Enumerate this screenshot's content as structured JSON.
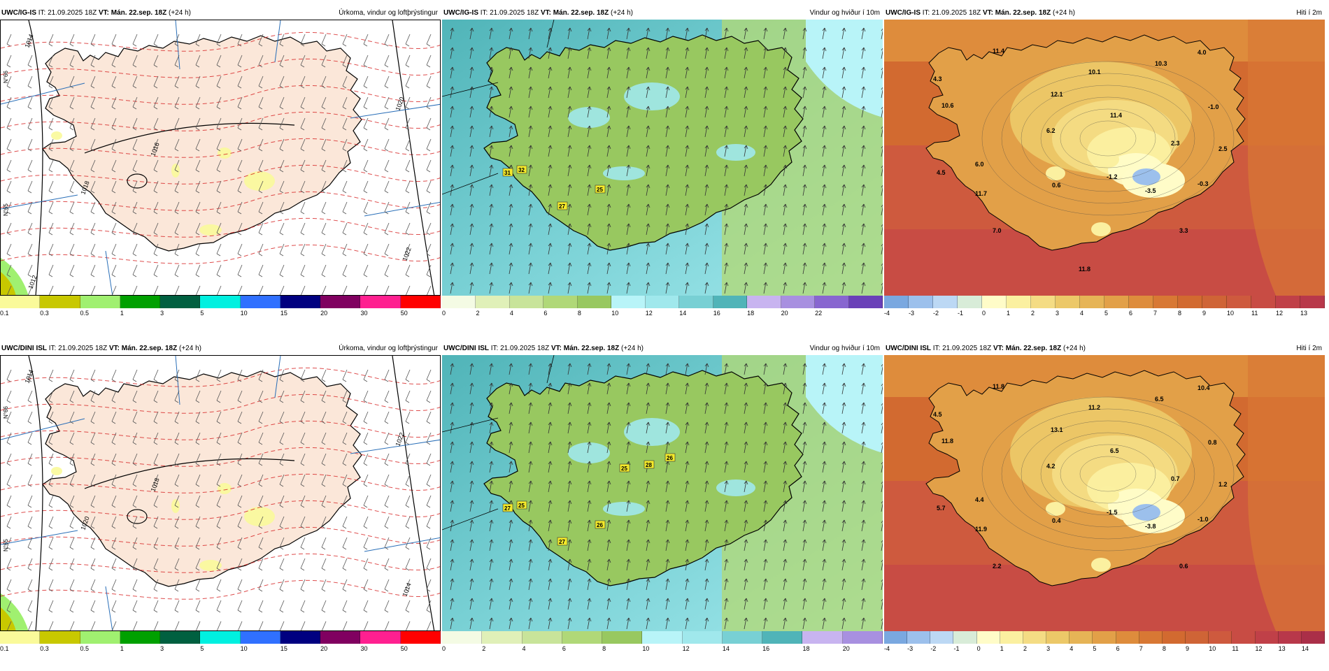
{
  "rows": [
    {
      "model": "UWC/IG-IS",
      "it_text": "IT: 21.09.2025 18Z",
      "vt_text": "VT: Mán. 22.sep. 18Z",
      "lead_text": "(+24 h)",
      "panels": [
        {
          "title": "Úrkoma, vindur og loftþrýstingur",
          "ticks": [
            "0.1",
            "0.3",
            "0.5",
            "1",
            "3",
            "5",
            "10",
            "15",
            "20",
            "30",
            "50"
          ],
          "pressure_labels": [
            "1014",
            "1016",
            "1018",
            "1020",
            "1022",
            "1012"
          ],
          "lat_labels": [
            "N°66",
            "N°65"
          ]
        },
        {
          "title": "Vindur og hviður í 10m",
          "ticks": [
            "0",
            "2",
            "4",
            "6",
            "8",
            "10",
            "12",
            "14",
            "16",
            "18",
            "20",
            "22"
          ],
          "gusts": [
            "31",
            "32",
            "25",
            "27"
          ]
        },
        {
          "title": "Hiti í 2m",
          "ticks": [
            "-4",
            "-3",
            "-2",
            "-1",
            "0",
            "1",
            "2",
            "3",
            "4",
            "5",
            "6",
            "7",
            "8",
            "9",
            "10",
            "11",
            "12",
            "13"
          ],
          "temps": [
            "11.4",
            "4.3",
            "10.6",
            "12.1",
            "10.1",
            "10.3",
            "4.0",
            "-1.0",
            "11.4",
            "6.2",
            "2.3",
            "2.5",
            "4.5",
            "6.0",
            "0.6",
            "-1.2",
            "-3.5",
            "-0.3",
            "11.7",
            "7.0",
            "3.3",
            "11.8"
          ]
        }
      ]
    },
    {
      "model": "UWC/DINI ISL",
      "it_text": "IT: 21.09.2025 18Z",
      "vt_text": "VT: Mán. 22.sep. 18Z",
      "lead_text": "(+24 h)",
      "panels": [
        {
          "title": "Úrkoma, vindur og loftþrýstingur",
          "ticks": [
            "0.1",
            "0.3",
            "0.5",
            "1",
            "3",
            "5",
            "10",
            "15",
            "20",
            "30",
            "50"
          ],
          "pressure_labels": [
            "1014",
            "1018",
            "1020",
            "1022",
            "1014"
          ],
          "lat_labels": [
            "N°66",
            "N°65"
          ]
        },
        {
          "title": "Vindur og hviður í 10m",
          "ticks": [
            "0",
            "2",
            "4",
            "6",
            "8",
            "10",
            "12",
            "14",
            "16",
            "18",
            "20"
          ],
          "gusts": [
            "27",
            "25",
            "26",
            "27",
            "25",
            "28",
            "26"
          ]
        },
        {
          "title": "Hiti í 2m",
          "ticks": [
            "-4",
            "-3",
            "-2",
            "-1",
            "0",
            "1",
            "2",
            "3",
            "4",
            "5",
            "6",
            "7",
            "8",
            "9",
            "10",
            "11",
            "12",
            "13",
            "14"
          ],
          "temps": [
            "11.8",
            "4.5",
            "11.8",
            "13.1",
            "11.2",
            "6.5",
            "10.4",
            "0.8",
            "6.5",
            "4.2",
            "0.7",
            "1.2",
            "5.7",
            "4.4",
            "0.4",
            "-1.5",
            "-3.8",
            "-1.0",
            "11.9",
            "2.2",
            "0.6"
          ]
        }
      ]
    }
  ],
  "colors": {
    "precip": [
      "#fafa9a",
      "#c8c800",
      "#a0f070",
      "#00a000",
      "#006040",
      "#00f0e0",
      "#3070ff",
      "#000080",
      "#800060",
      "#ff2090",
      "#ff0000"
    ],
    "wind": [
      "#f4fbe4",
      "#e0f0b8",
      "#c8e49a",
      "#b0d878",
      "#98c860",
      "#b8f4f8",
      "#a0e8ec",
      "#78d0d4",
      "#50b4b8",
      "#c8b4f0",
      "#a890e0",
      "#8866d0",
      "#6a40b8"
    ],
    "temp": [
      "#7aa8e0",
      "#9cc0ec",
      "#bcd8f4",
      "#d8ecd8",
      "#fffcc8",
      "#fbf0a0",
      "#f4dc84",
      "#ecc868",
      "#e6b456",
      "#e2a048",
      "#de8c3c",
      "#d87834",
      "#d26a30",
      "#cf6436",
      "#ce5a3e",
      "#c84c44",
      "#c04048",
      "#b8384a",
      "#aa2f48"
    ],
    "land_precip": "#fbe7d9",
    "sea_precip": "#ffffff",
    "contour": "#d62020",
    "grid": "#2a6fb8"
  }
}
